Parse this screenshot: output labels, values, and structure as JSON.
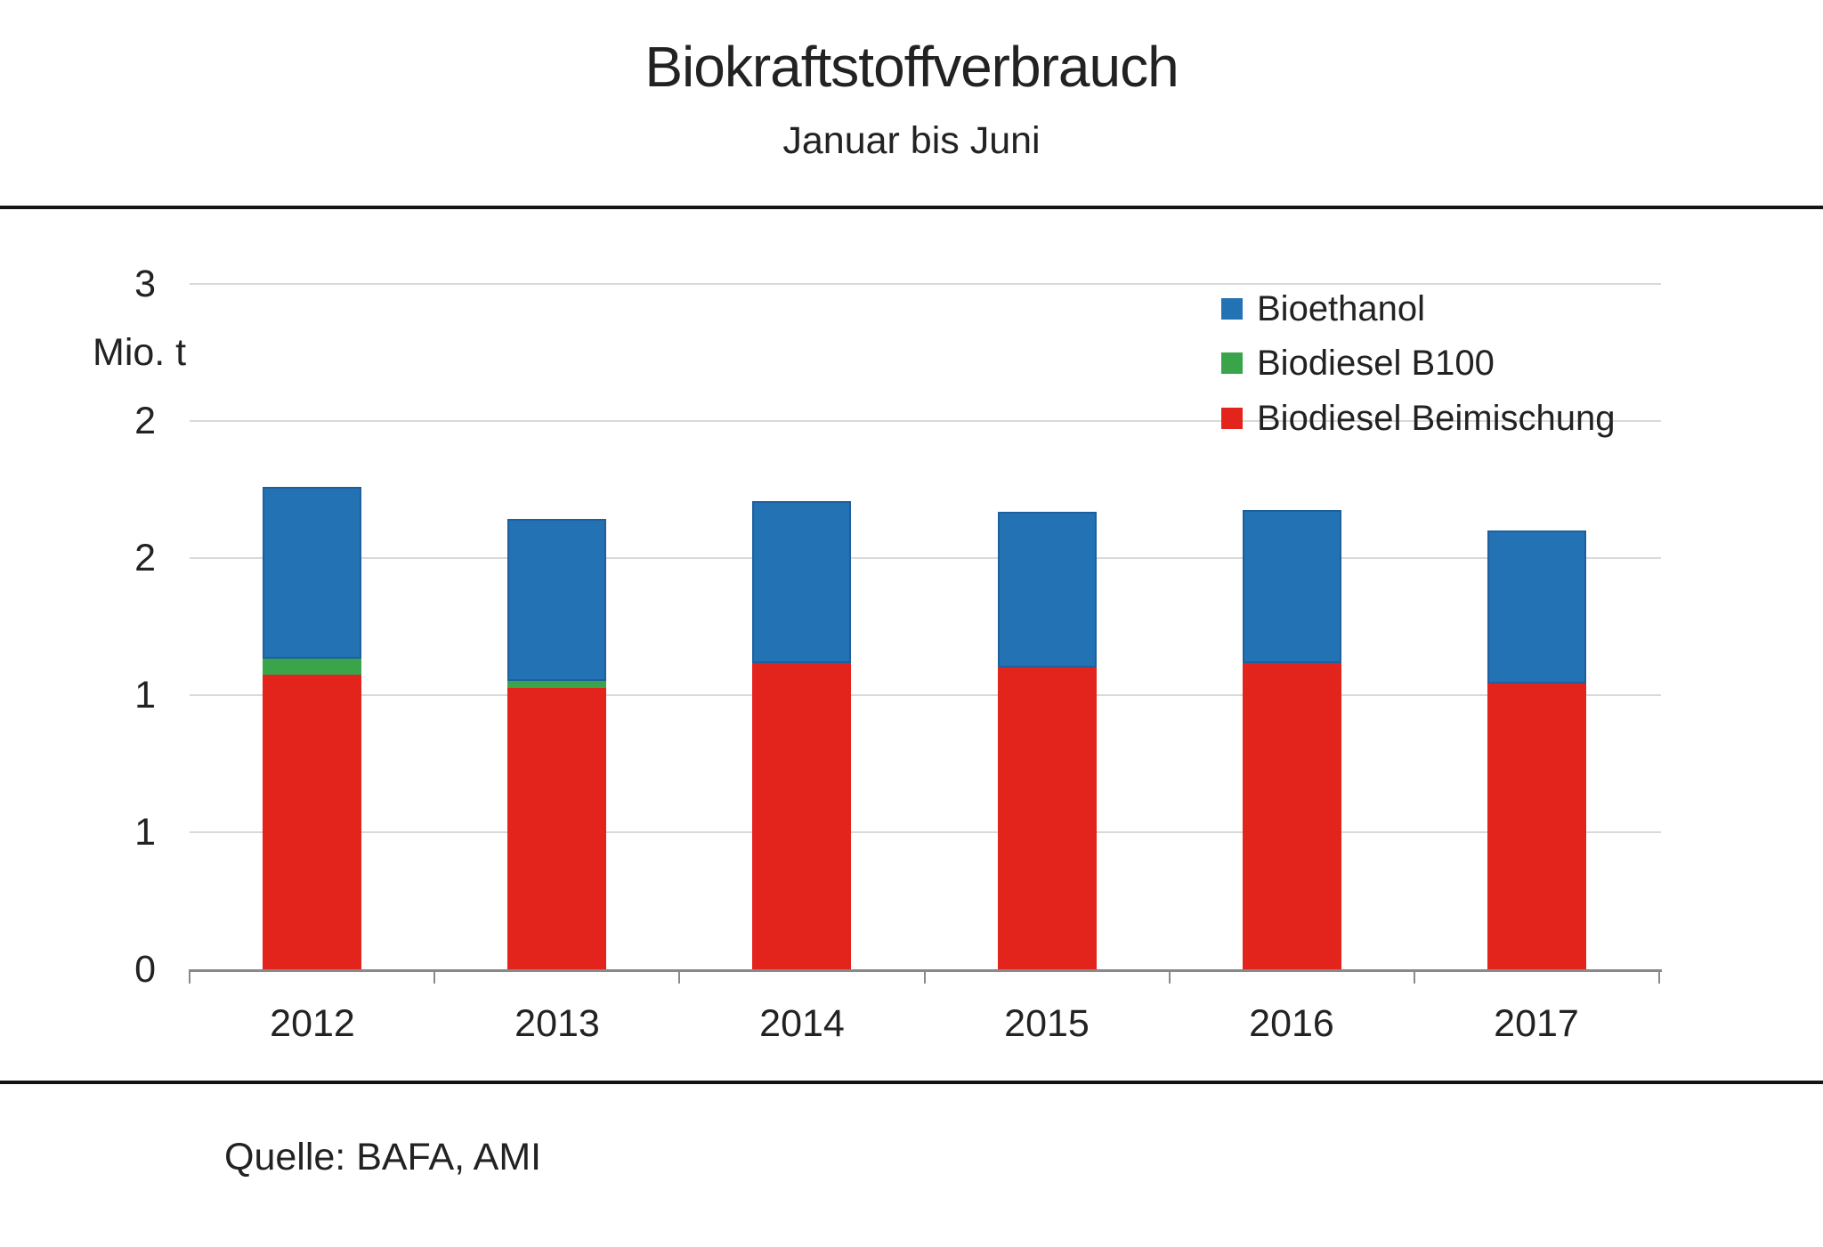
{
  "header": {
    "title": "Biokraftstoffverbrauch",
    "subtitle": "Januar bis Juni"
  },
  "footer": {
    "source": "Quelle: BAFA, AMI"
  },
  "chart_data": {
    "type": "bar",
    "stacked": true,
    "title": "Biokraftstoffverbrauch",
    "subtitle": "Januar bis Juni",
    "ylabel": "Mio. t",
    "xlabel": "",
    "ylim": [
      0,
      3
    ],
    "y_major_step": 0.6,
    "y_ticks": [
      {
        "value": 3.0,
        "label": "3"
      },
      {
        "value": 2.4,
        "label": "2"
      },
      {
        "value": 1.8,
        "label": "2"
      },
      {
        "value": 1.2,
        "label": "1"
      },
      {
        "value": 0.6,
        "label": "1"
      },
      {
        "value": 0.0,
        "label": "0"
      }
    ],
    "grid": true,
    "categories": [
      "2012",
      "2013",
      "2014",
      "2015",
      "2016",
      "2017"
    ],
    "series": [
      {
        "name": "Biodiesel Beimischung",
        "color": "#E3241D",
        "values": [
          1.29,
          1.23,
          1.34,
          1.32,
          1.34,
          1.25
        ]
      },
      {
        "name": "Biodiesel B100",
        "color": "#3AA44A",
        "values": [
          0.07,
          0.03,
          0.0,
          0.0,
          0.0,
          0.0
        ]
      },
      {
        "name": "Bioethanol",
        "color": "#2272B4",
        "values": [
          0.75,
          0.71,
          0.71,
          0.68,
          0.67,
          0.67
        ]
      }
    ],
    "legend": [
      "Bioethanol",
      "Biodiesel B100",
      "Biodiesel Beimischung"
    ],
    "legend_position": "top-right-inside"
  },
  "style": {
    "grid_color": "#d9d9d9",
    "axis_color": "#898989",
    "text_color": "#222222",
    "rule_color": "#141414",
    "bioethanol_border_color": "#1E5F9E"
  }
}
